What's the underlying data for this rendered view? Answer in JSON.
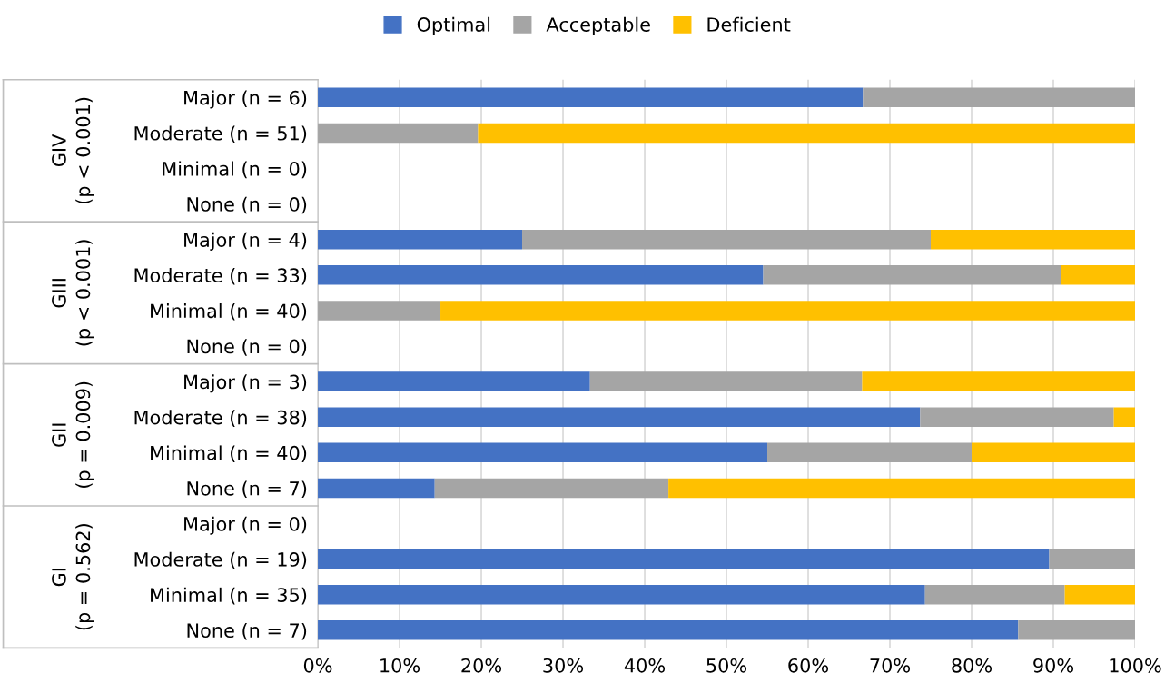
{
  "chart_data": {
    "type": "bar",
    "orientation": "horizontal",
    "stacked": true,
    "categories": [
      "Major (n = 6)",
      "Moderate (n = 51)",
      "Minimal (n = 0)",
      "None (n = 0)",
      "Major (n = 4)",
      "Moderate (n = 33)",
      "Minimal (n = 40)",
      "None (n = 0)",
      "Major (n = 3)",
      "Moderate (n = 38)",
      "Minimal (n = 40)",
      "None (n = 7)",
      "Major (n = 0)",
      "Moderate (n = 19)",
      "Minimal (n = 35)",
      "None (n = 7)"
    ],
    "series": [
      {
        "name": "Optimal",
        "color": "#4472c4",
        "values": [
          66.7,
          null,
          null,
          null,
          25,
          54.5,
          null,
          null,
          33.3,
          73.7,
          55,
          14.3,
          null,
          89.5,
          74.3,
          85.7
        ]
      },
      {
        "name": "Acceptable",
        "color": "#a5a5a5",
        "values": [
          33.3,
          19.6,
          null,
          null,
          50,
          36.4,
          15,
          null,
          33.3,
          23.7,
          25,
          28.6,
          null,
          10.5,
          17.1,
          14.3
        ]
      },
      {
        "name": "Deficient",
        "color": "#ffc000",
        "values": [
          null,
          80.4,
          null,
          null,
          25,
          9.1,
          85,
          null,
          33.4,
          2.6,
          20,
          57.1,
          null,
          null,
          8.6,
          null
        ]
      }
    ],
    "xlim": [
      0,
      100
    ],
    "xticks": [
      {
        "value": 0,
        "label": "0%"
      },
      {
        "value": 10,
        "label": "10%"
      },
      {
        "value": 20,
        "label": "20%"
      },
      {
        "value": 30,
        "label": "30%"
      },
      {
        "value": 40,
        "label": "40%"
      },
      {
        "value": 50,
        "label": "50%"
      },
      {
        "value": 60,
        "label": "60%"
      },
      {
        "value": 70,
        "label": "70%"
      },
      {
        "value": 80,
        "label": "80%"
      },
      {
        "value": 90,
        "label": "90%"
      },
      {
        "value": 100,
        "label": "100%"
      }
    ],
    "annotations": [
      "GIV\n(p < 0.001)",
      "GIII\n(p < 0.001)",
      "GII\n(p = 0.009)",
      "GI\n(p = 0.562)"
    ],
    "grid": "x",
    "legend": "top"
  }
}
